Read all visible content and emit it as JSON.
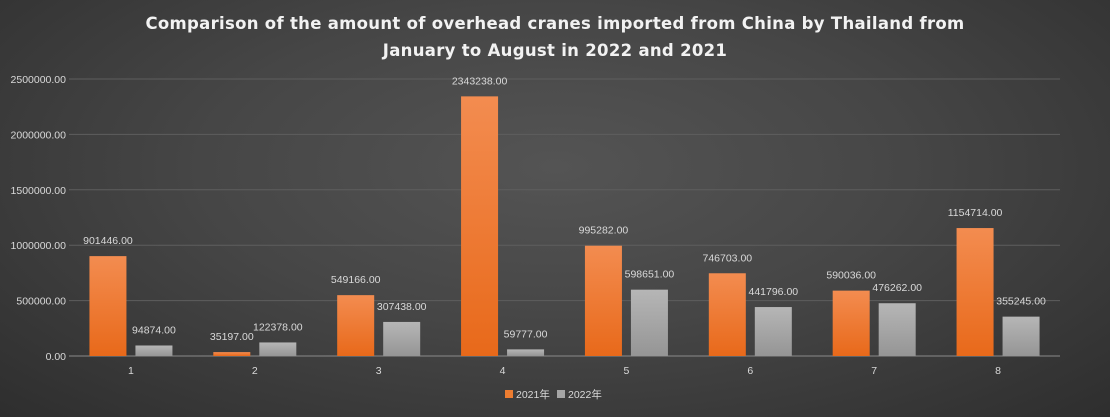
{
  "chart_data": {
    "type": "bar",
    "title_line1": "Comparison of the amount of overhead cranes imported from China by Thailand from",
    "title_line2": "January to August in 2022 and 2021",
    "categories": [
      "1",
      "2",
      "3",
      "4",
      "5",
      "6",
      "7",
      "8"
    ],
    "series": [
      {
        "name": "2021年",
        "color": "#ed7d31",
        "values": [
          901446,
          35197,
          549166,
          2343238,
          995282,
          746703,
          590036,
          1154714
        ],
        "labels": [
          "901446.00",
          "35197.00",
          "549166.00",
          "2343238.00",
          "995282.00",
          "746703.00",
          "590036.00",
          "1154714.00"
        ]
      },
      {
        "name": "2022年",
        "color": "#a5a5a5",
        "values": [
          94874,
          122378,
          307438,
          59777,
          598651,
          441796,
          476262,
          355245
        ],
        "labels": [
          "94874.00",
          "122378.00",
          "307438.00",
          "59777.00",
          "598651.00",
          "441796.00",
          "476262.00",
          "355245.00"
        ]
      }
    ],
    "yticks": [
      "0.00",
      "500000.00",
      "1000000.00",
      "1500000.00",
      "2000000.00",
      "2500000.00"
    ],
    "ylim": [
      0,
      2500000
    ],
    "xlabel": "",
    "ylabel": "",
    "grid": true,
    "legend": "bottom"
  }
}
